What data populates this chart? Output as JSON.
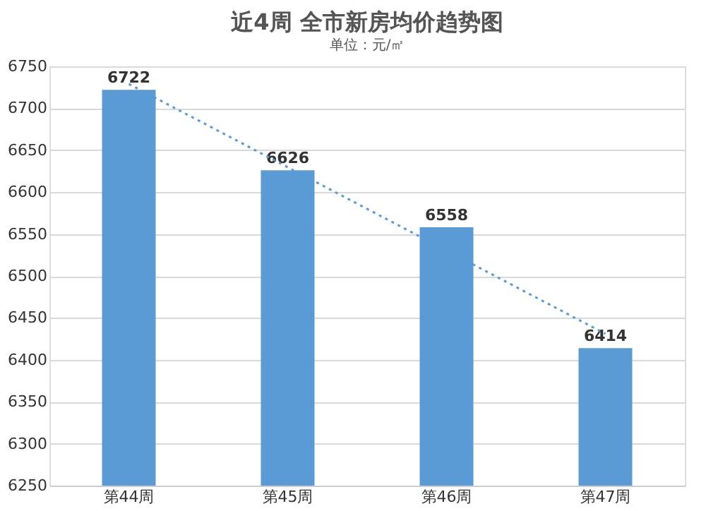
{
  "chart_data": {
    "type": "bar",
    "title": "近4周 全市新房均价趋势图",
    "subtitle": "单位：元/㎡",
    "categories": [
      "第44周",
      "第45周",
      "第46周",
      "第47周"
    ],
    "series": [
      {
        "color": "#5b9bd5",
        "values": [
          6722,
          6626,
          6558,
          6414
        ],
        "value_labels": [
          "6722",
          "6626",
          "6558",
          "6414"
        ]
      },
      {
        "type": "line",
        "color": "#5b9bd5",
        "line_style": "dotted",
        "x": [
          "第44周",
          "第47周"
        ],
        "values": [
          6729,
          6431
        ]
      }
    ],
    "ylim": [
      6250,
      6750
    ],
    "yticks": [
      6250,
      6300,
      6350,
      6400,
      6450,
      6500,
      6550,
      6600,
      6650,
      6700,
      6750
    ],
    "grid": "y"
  }
}
